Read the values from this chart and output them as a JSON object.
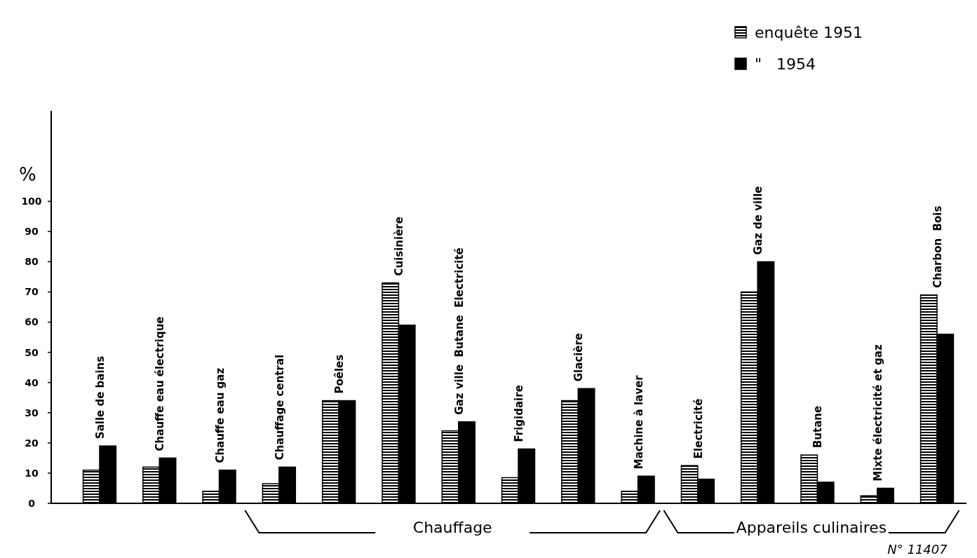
{
  "chart_data": {
    "type": "bar",
    "ylabel": "%",
    "categories": [
      "Salle de bains",
      "Chauffe eau électrique",
      "Chauffe eau gaz",
      "Chauffage central",
      "Poêles",
      "Cuisinière",
      "Gaz ville  Butane  Electricité",
      "Frigidaire",
      "Glacière",
      "Machine à laver",
      "Electricité",
      "Gaz de ville",
      "Butane",
      "Mixte électricité et gaz",
      "Charbon  Bois"
    ],
    "series": [
      {
        "name": "enquête 1951",
        "color": "#000000",
        "values": [
          11,
          12,
          4,
          6.5,
          34,
          73,
          24,
          8.5,
          34,
          4,
          12.5,
          70,
          16,
          2.5,
          69
        ]
      },
      {
        "name": "\"   1954",
        "color": "#000000",
        "values": [
          19,
          15,
          11,
          12,
          34,
          59,
          27,
          18,
          38,
          9,
          8,
          80,
          7,
          5,
          56
        ]
      }
    ],
    "ylim": [
      0,
      130
    ],
    "yticks": [
      0,
      10,
      20,
      30,
      40,
      50,
      60,
      70,
      80,
      90,
      100
    ],
    "grid": false,
    "legend": "top right",
    "annotations": [
      "Chauffage",
      "Appareils culinaires",
      "N° 11407"
    ]
  }
}
